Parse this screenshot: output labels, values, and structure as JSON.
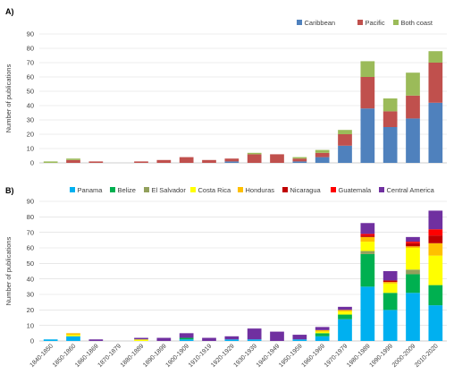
{
  "chart_data": [
    {
      "panel_label": "A)",
      "type": "bar",
      "stacked": true,
      "ylabel": "Number of publications",
      "ylim": [
        0,
        90
      ],
      "yticks": [
        0,
        10,
        20,
        30,
        40,
        50,
        60,
        70,
        80,
        90
      ],
      "grid": true,
      "legend": "top-right",
      "categories": [
        "1840-1850",
        "1850-1860",
        "1860-1869",
        "1870-1879",
        "1880-1889",
        "1890-1899",
        "1900-1909",
        "1910-1919",
        "1920-1929",
        "1930-1939",
        "1940-1949",
        "1950-1959",
        "1960-1969",
        "1970-1979",
        "1980-1989",
        "1990-1999",
        "2000-2009",
        "2010-2020"
      ],
      "series": [
        {
          "name": "Caribbean",
          "color": "#4f81bd",
          "values": [
            0,
            0,
            0,
            0,
            0,
            0,
            0,
            0,
            1,
            0,
            0,
            1,
            4,
            12,
            38,
            25,
            31,
            42
          ]
        },
        {
          "name": "Pacific",
          "color": "#c0504d",
          "values": [
            0,
            2,
            1,
            0,
            1,
            2,
            4,
            2,
            2,
            6,
            6,
            2,
            3,
            8,
            22,
            11,
            16,
            28
          ]
        },
        {
          "name": "Both coast",
          "color": "#9bbb59",
          "values": [
            1,
            1,
            0,
            0,
            0,
            0,
            0,
            0,
            0,
            1,
            0,
            1,
            2,
            3,
            11,
            9,
            16,
            8
          ]
        }
      ]
    },
    {
      "panel_label": "B)",
      "type": "bar",
      "stacked": true,
      "ylabel": "Number of publications",
      "ylim": [
        0,
        90
      ],
      "yticks": [
        0,
        10,
        20,
        30,
        40,
        50,
        60,
        70,
        80,
        90
      ],
      "grid": true,
      "legend": "top",
      "categories": [
        "1840-1850",
        "1850-1860",
        "1860-1869",
        "1870-1879",
        "1880-1889",
        "1890-1899",
        "1900-1909",
        "1910-1919",
        "1920-1929",
        "1930-1939",
        "1940-1949",
        "1950-1959",
        "1960-1969",
        "1970-1979",
        "1980-1989",
        "1990-1999",
        "2000-2009",
        "2010-2020"
      ],
      "series": [
        {
          "name": "Panama",
          "color": "#00b0f0",
          "values": [
            1,
            3,
            0,
            0,
            0,
            0,
            1,
            0,
            1,
            1,
            0,
            1,
            3,
            14,
            35,
            20,
            31,
            23
          ]
        },
        {
          "name": "Belize",
          "color": "#00b050",
          "values": [
            0,
            0,
            0,
            0,
            0,
            0,
            1,
            0,
            0,
            0,
            0,
            0,
            2,
            3,
            21,
            11,
            12,
            13
          ]
        },
        {
          "name": "El Salvador",
          "color": "#92a05c",
          "values": [
            0,
            0,
            0,
            0,
            0,
            0,
            0,
            0,
            0,
            0,
            0,
            0,
            0,
            0,
            2,
            0,
            3,
            0
          ]
        },
        {
          "name": "Costa Rica",
          "color": "#ffff00",
          "values": [
            0,
            1,
            0,
            0,
            1,
            0,
            0,
            0,
            0,
            0,
            0,
            0,
            1,
            2,
            6,
            6,
            14,
            19
          ]
        },
        {
          "name": "Honduras",
          "color": "#ffc000",
          "values": [
            0,
            1,
            0,
            0,
            0,
            0,
            0,
            0,
            0,
            0,
            0,
            0,
            1,
            1,
            3,
            1,
            1,
            8
          ]
        },
        {
          "name": "Nicaragua",
          "color": "#c00000",
          "values": [
            0,
            0,
            0,
            0,
            0,
            0,
            0,
            0,
            0,
            0,
            0,
            0,
            0,
            0,
            1,
            1,
            2,
            5
          ]
        },
        {
          "name": "Guatemala",
          "color": "#ff0000",
          "values": [
            0,
            0,
            0,
            0,
            0,
            0,
            0,
            0,
            0,
            0,
            0,
            0,
            0,
            0,
            1,
            0,
            1,
            4
          ]
        },
        {
          "name": "Central America",
          "color": "#7030a0",
          "values": [
            0,
            0,
            1,
            0,
            1,
            2,
            3,
            2,
            2,
            7,
            6,
            3,
            2,
            2,
            7,
            6,
            3,
            12
          ]
        }
      ]
    }
  ]
}
